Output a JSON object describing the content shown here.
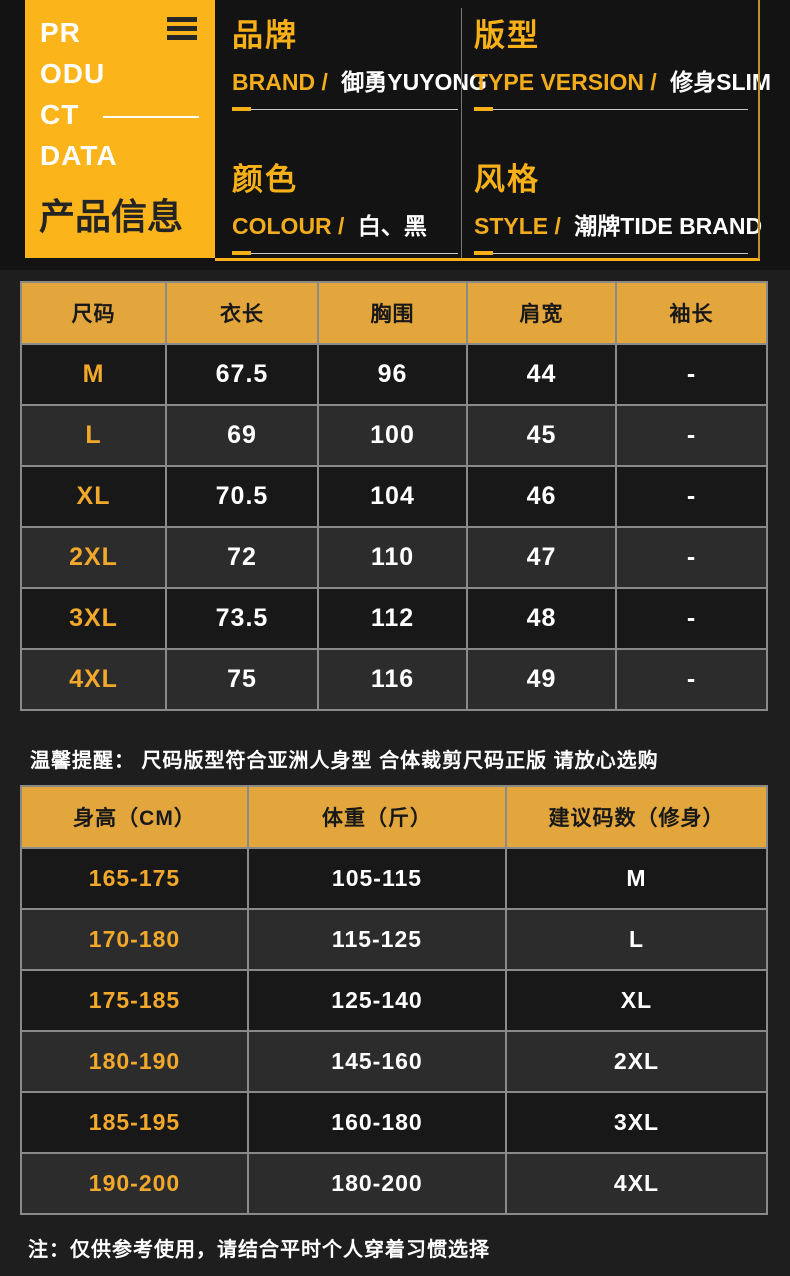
{
  "header": {
    "logo": {
      "en_lines": [
        "PR",
        "ODU",
        "CT",
        "DATA"
      ],
      "cjk": "产品信息",
      "menu_icon": "hamburger-icon"
    },
    "fields": [
      {
        "title": "品牌",
        "label": "BRAND /",
        "value": "御勇YUYONG"
      },
      {
        "title": "版型",
        "label": "TYPE VERSION /",
        "value": "修身SLIM"
      },
      {
        "title": "颜色",
        "label": "COLOUR /",
        "value": "白、黑"
      },
      {
        "title": "风格",
        "label": "STYLE /",
        "value": "潮牌TIDE BRAND"
      }
    ]
  },
  "size_table": {
    "headers": [
      "尺码",
      "衣长",
      "胸围",
      "肩宽",
      "袖长"
    ],
    "rows": [
      {
        "size": "M",
        "length": "67.5",
        "chest": "96",
        "shoulder": "44",
        "sleeve": "-"
      },
      {
        "size": "L",
        "length": "69",
        "chest": "100",
        "shoulder": "45",
        "sleeve": "-"
      },
      {
        "size": "XL",
        "length": "70.5",
        "chest": "104",
        "shoulder": "46",
        "sleeve": "-"
      },
      {
        "size": "2XL",
        "length": "72",
        "chest": "110",
        "shoulder": "47",
        "sleeve": "-"
      },
      {
        "size": "3XL",
        "length": "73.5",
        "chest": "112",
        "shoulder": "48",
        "sleeve": "-"
      },
      {
        "size": "4XL",
        "length": "75",
        "chest": "116",
        "shoulder": "49",
        "sleeve": "-"
      }
    ]
  },
  "reminder": "温馨提醒： 尺码版型符合亚洲人身型 合体裁剪尺码正版 请放心选购",
  "fit_table": {
    "headers": [
      "身高（CM）",
      "体重（斤）",
      "建议码数（修身）"
    ],
    "rows": [
      {
        "height": "165-175",
        "weight": "105-115",
        "size": "M"
      },
      {
        "height": "170-180",
        "weight": "115-125",
        "size": "L"
      },
      {
        "height": "175-185",
        "weight": "125-140",
        "size": "XL"
      },
      {
        "height": "180-190",
        "weight": "145-160",
        "size": "2XL"
      },
      {
        "height": "185-195",
        "weight": "160-180",
        "size": "3XL"
      },
      {
        "height": "190-200",
        "weight": "180-200",
        "size": "4XL"
      }
    ]
  },
  "note": "注：仅供参考使用，请结合平时个人穿着习惯选择",
  "colors": {
    "accent_yellow": "#FBB41A",
    "table_header_yellow": "#E2A63C",
    "row_dark": "#181818",
    "row_light": "#2C2C2C",
    "background": "#1E1E1E",
    "header_background": "#131313",
    "text_white": "#FFFFFF",
    "text_dark": "#242424"
  }
}
